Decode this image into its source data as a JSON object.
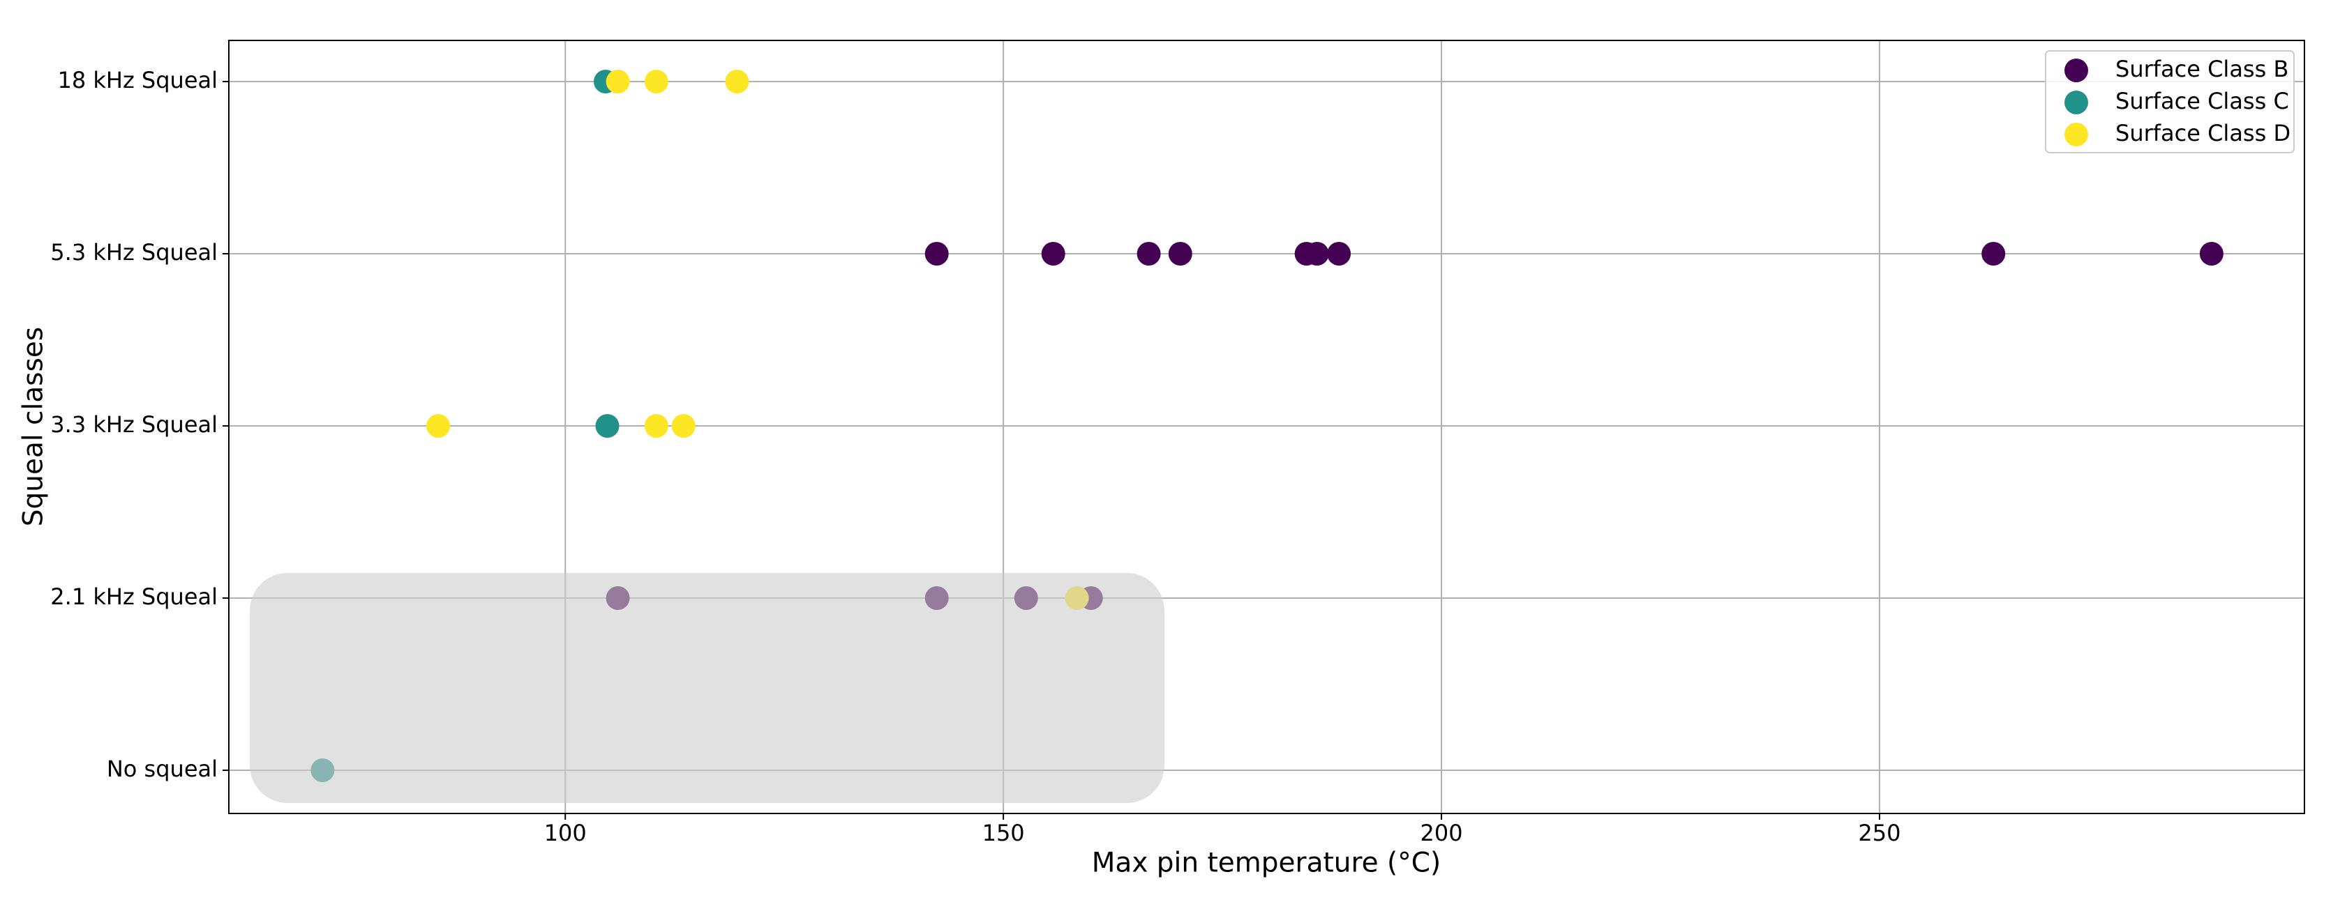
{
  "chart_data": {
    "type": "scatter",
    "xlabel": "Max pin temperature (°C)",
    "ylabel": "Squeal classes",
    "categories": [
      "No squeal",
      "2.1 kHz Squeal",
      "3.3 kHz Squeal",
      "5.3 kHz Squeal",
      "18 kHz Squeal"
    ],
    "xlim": [
      61.6,
      298.5
    ],
    "xticks": [
      100,
      150,
      200,
      250
    ],
    "grid": true,
    "legend_loc": "upper right",
    "series": [
      {
        "name": "Surface Class B",
        "color": "#440154",
        "x": [
          142.4,
          155.7,
          166.6,
          170.2,
          184.6,
          185.8,
          188.3,
          263.0,
          287.9,
          106.0,
          142.4,
          152.6,
          160.0
        ],
        "values": [
          "5.3 kHz Squeal",
          "5.3 kHz Squeal",
          "5.3 kHz Squeal",
          "5.3 kHz Squeal",
          "5.3 kHz Squeal",
          "5.3 kHz Squeal",
          "5.3 kHz Squeal",
          "5.3 kHz Squeal",
          "5.3 kHz Squeal",
          "2.1 kHz Squeal",
          "2.1 kHz Squeal",
          "2.1 kHz Squeal",
          "2.1 kHz Squeal"
        ]
      },
      {
        "name": "Surface Class C",
        "color": "#21918c",
        "x": [
          104.6,
          104.8,
          72.3
        ],
        "values": [
          "18 kHz Squeal",
          "3.3 kHz Squeal",
          "No squeal"
        ]
      },
      {
        "name": "Surface Class D",
        "color": "#fde725",
        "x": [
          106.0,
          110.4,
          119.6,
          85.5,
          110.4,
          113.5,
          158.4
        ],
        "values": [
          "18 kHz Squeal",
          "18 kHz Squeal",
          "18 kHz Squeal",
          "3.3 kHz Squeal",
          "3.3 kHz Squeal",
          "3.3 kHz Squeal",
          "2.1 kHz Squeal"
        ]
      }
    ]
  }
}
